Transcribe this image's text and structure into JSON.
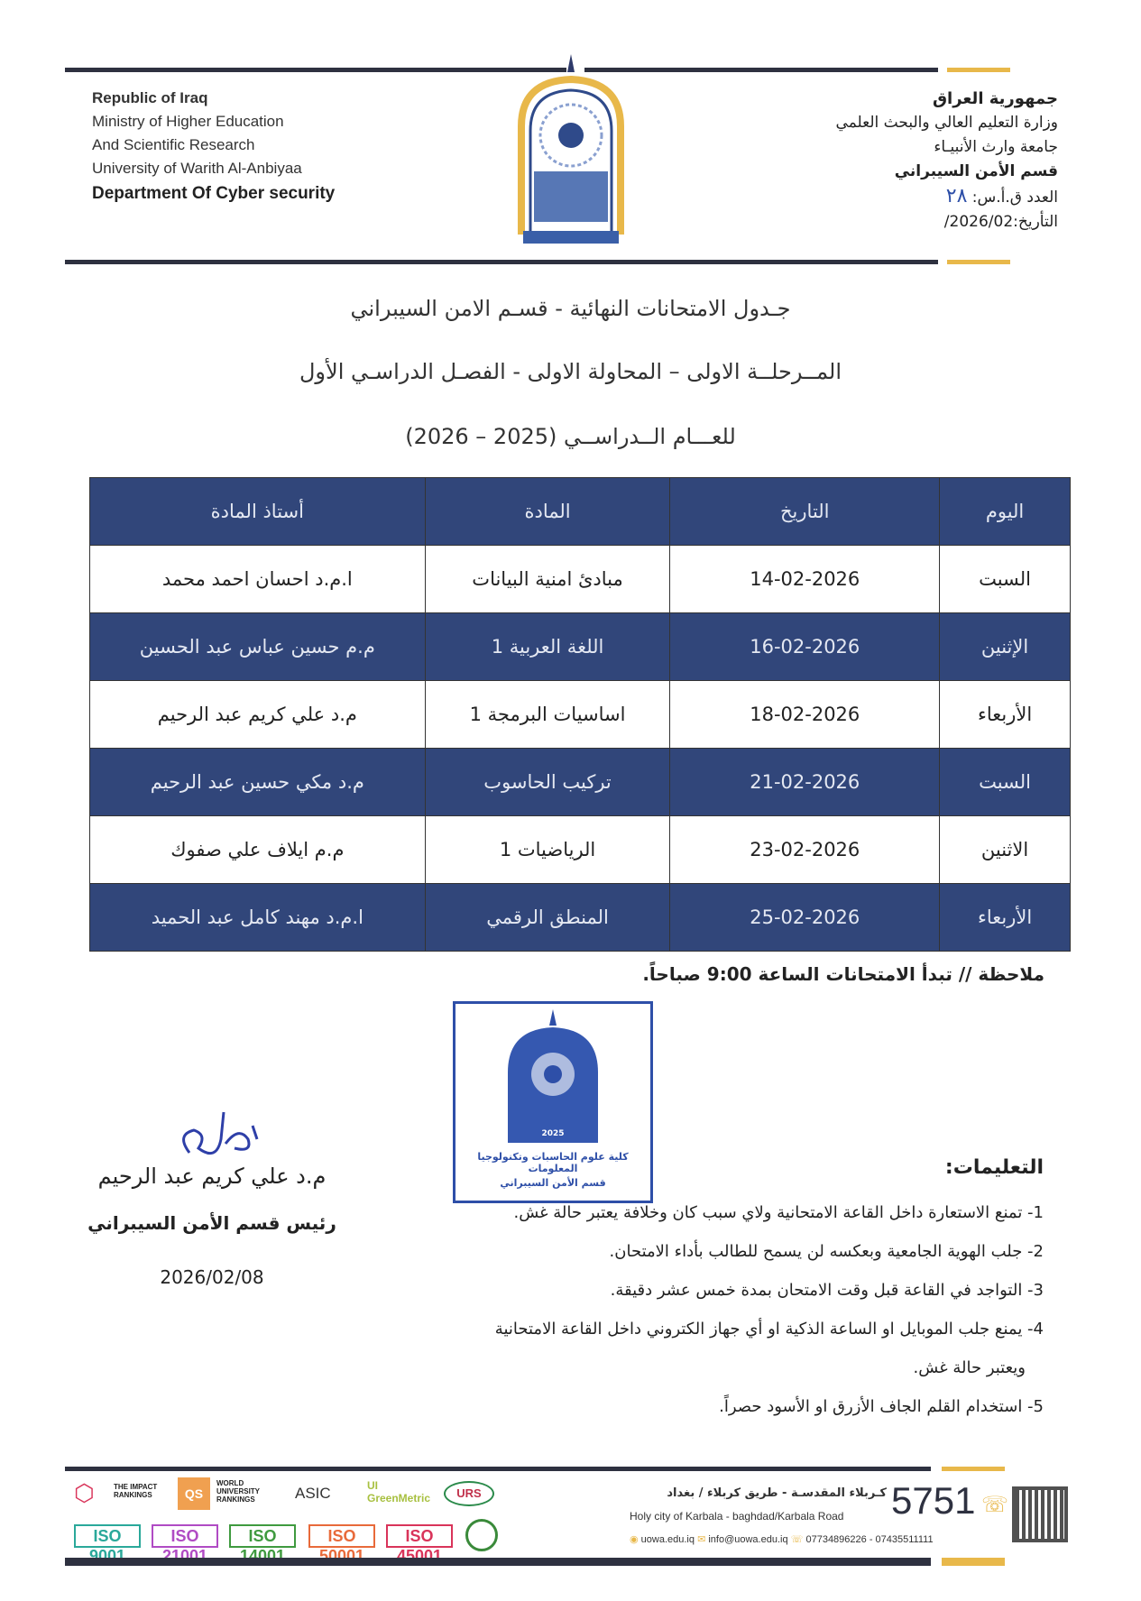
{
  "header": {
    "en": [
      "Republic of Iraq",
      "Ministry of Higher Education",
      "And Scientific Research",
      "University of Warith Al-Anbiyaa",
      "Department Of Cyber security"
    ],
    "ar": [
      "جمهورية العراق",
      "وزارة التعليم العالي والبحث العلمي",
      "جامعة وارث الأنبيـاء",
      "قسم الأمن السيبراني"
    ],
    "number_label": "العدد ق.أ.س:",
    "number_value": "٢٨",
    "date_label": "التأريخ:",
    "date_value": "2026/02/",
    "logo_text": [
      "UNIVERSITY OF WARITH AL-ANBIYAA",
      "جامعة وارث الأنبياء",
      "2025",
      "كلية علوم الحاسوب وتكنولوجيا المعلومات"
    ]
  },
  "titles": [
    "جـدول الامتحانات النهائية - قسـم الامن السيبراني",
    "المــرحلــة الاولى – المحاولة الاولى - الفصـل الدراسـي الأول",
    "للعـــام الــدراســي (2025 – 2026)"
  ],
  "table": {
    "headers": [
      "اليوم",
      "التاريخ",
      "المادة",
      "أستاذ المادة"
    ],
    "rows": [
      [
        "السبت",
        "14-02-2026",
        "مبادئ امنية البيانات",
        "ا.م.د احسان احمد محمد"
      ],
      [
        "الإثنين",
        "16-02-2026",
        "اللغة العربية 1",
        "م.م حسين عباس عبد الحسين"
      ],
      [
        "الأربعاء",
        "18-02-2026",
        "اساسيات البرمجة 1",
        "م.د علي كريم عبد الرحيم"
      ],
      [
        "السبت",
        "21-02-2026",
        "تركيب الحاسوب",
        "م.د مكي حسين عبد الرحيم"
      ],
      [
        "الاثنين",
        "23-02-2026",
        "الرياضيات 1",
        "م.م ايلاف علي صفوك"
      ],
      [
        "الأربعاء",
        "25-02-2026",
        "المنطق الرقمي",
        "ا.م.د مهند كامل عبد الحميد"
      ]
    ],
    "colors": {
      "dark": "#31467a",
      "light": "#ffffff"
    }
  },
  "note": "ملاحظة // تبدأ الامتحانات الساعة 9:00 صباحاً.",
  "stamp": {
    "lines": [
      "كلية علوم الحاسبات وتكنولوجيا المعلومات",
      "قسم الأمن السيبراني"
    ],
    "year": "2025",
    "color": "#2e4fa8"
  },
  "signature": {
    "name": "م.د علي كريم عبد الرحيم",
    "title": "رئيس قسم الأمن السيبراني",
    "date": "2026/02/08"
  },
  "instructions": {
    "heading": "التعليمات:",
    "items": [
      "1-  تمنع الاستعارة داخل القاعة الامتحانية ولاي سبب كان وخلافة يعتبر حالة غش.",
      "2-  جلب الهوية الجامعية وبعكسه لن يسمح للطالب بأداء الامتحان.",
      "3-  التواجد في القاعة قبل وقت الامتحان بمدة خمس عشر دقيقة.",
      "4-  يمنع جلب الموبايل او الساعة الذكية او أي جهاز الكتروني داخل القاعة الامتحانية",
      "ويعتبر حالة غش.",
      "5-  استخدام القلم الجاف الأزرق او الأسود حصراً."
    ]
  },
  "footer": {
    "address_ar": "كـربلاء المقدسـة - طريق كربلاء / بغداد",
    "address_en": "Holy city of Karbala - baghdad/Karbala Road",
    "hotline": "5751",
    "website": "uowa.edu.iq",
    "email": "info@uowa.edu.iq",
    "phones": "07734896226 - 07435511111",
    "rankings": [
      "THE IMPACT RANKINGS",
      "QS",
      "WORLD UNIVERSITY RANKINGS",
      "ASIC",
      "UI GreenMetric",
      "URS"
    ],
    "iso": [
      "ISO 9001",
      "ISO 21001",
      "ISO 14001",
      "ISO 50001",
      "ISO 45001"
    ],
    "iso_colors": [
      "#2aa89a",
      "#b04bc4",
      "#3f9a3f",
      "#e86a3a",
      "#d9345a"
    ]
  }
}
